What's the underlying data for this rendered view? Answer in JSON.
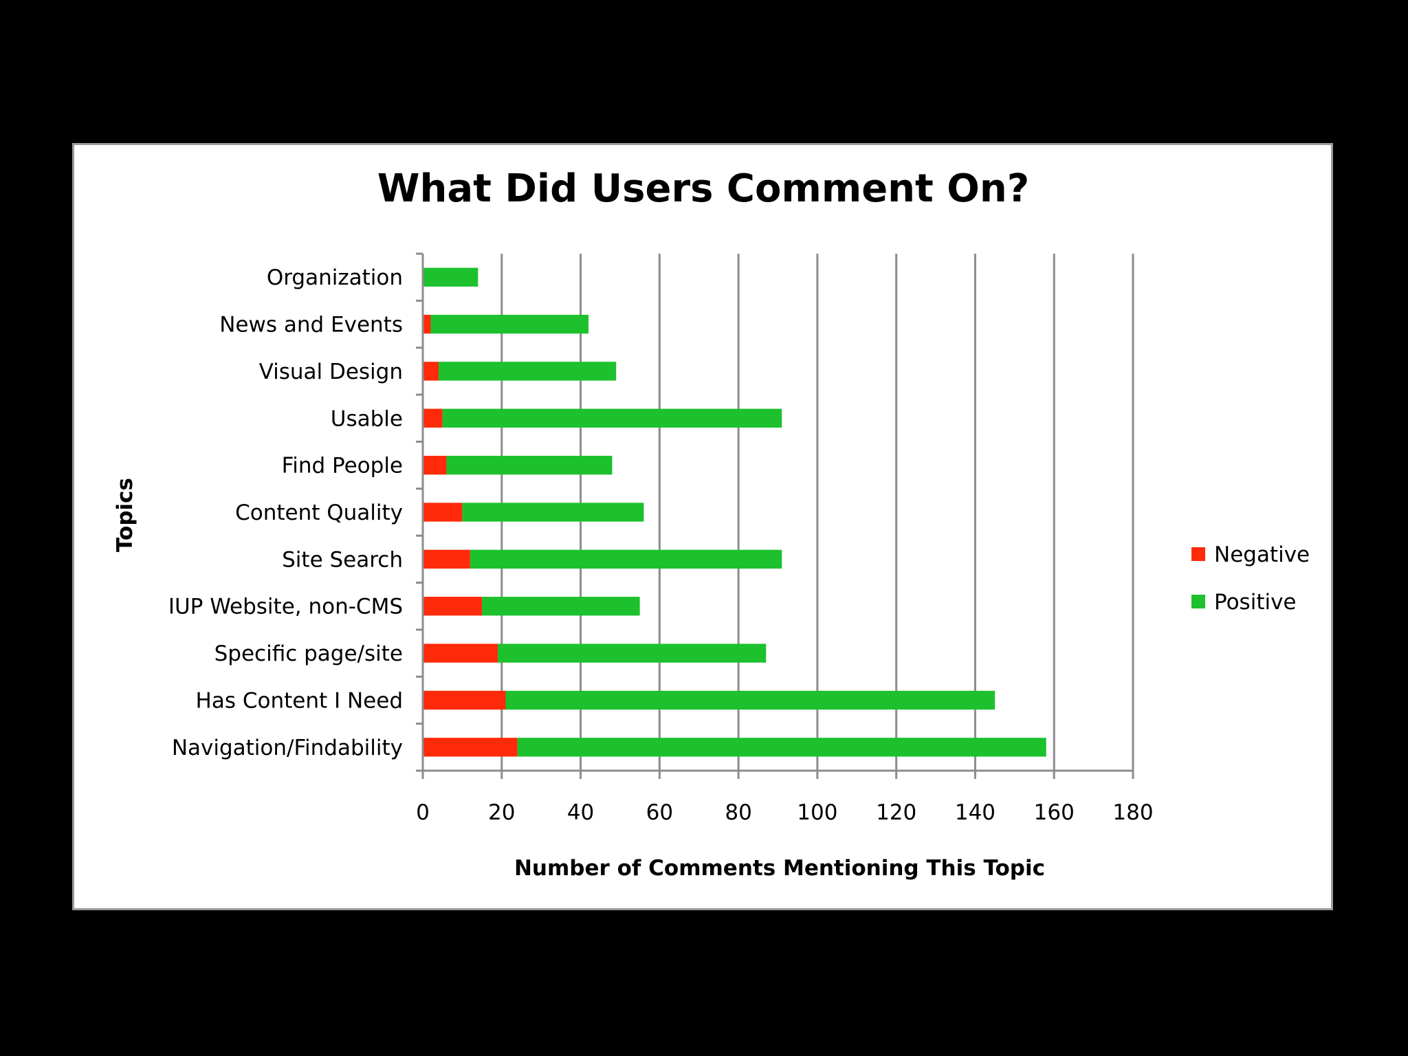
{
  "chart_data": {
    "type": "bar",
    "orientation": "horizontal",
    "stacked": true,
    "title": "What Did Users Comment On?",
    "xlabel": "Number of Comments Mentioning This Topic",
    "ylabel": "Topics",
    "xlim": [
      0,
      180
    ],
    "xticks": [
      0,
      20,
      40,
      60,
      80,
      100,
      120,
      140,
      160,
      180
    ],
    "grid": true,
    "legend_position": "right",
    "categories": [
      "Navigation/Findability",
      "Has Content I Need",
      "Specific page/site",
      "IUP Website, non-CMS",
      "Site Search",
      "Content Quality",
      "Find People",
      "Usable",
      "Visual Design",
      "News and Events",
      "Organization"
    ],
    "series": [
      {
        "name": "Negative",
        "color": "#ff2a0a",
        "values": [
          24,
          21,
          19,
          15,
          12,
          10,
          6,
          5,
          4,
          2,
          0
        ]
      },
      {
        "name": "Positive",
        "color": "#1cc12d",
        "values": [
          134,
          124,
          68,
          40,
          79,
          46,
          42,
          86,
          45,
          40,
          14
        ]
      }
    ]
  }
}
